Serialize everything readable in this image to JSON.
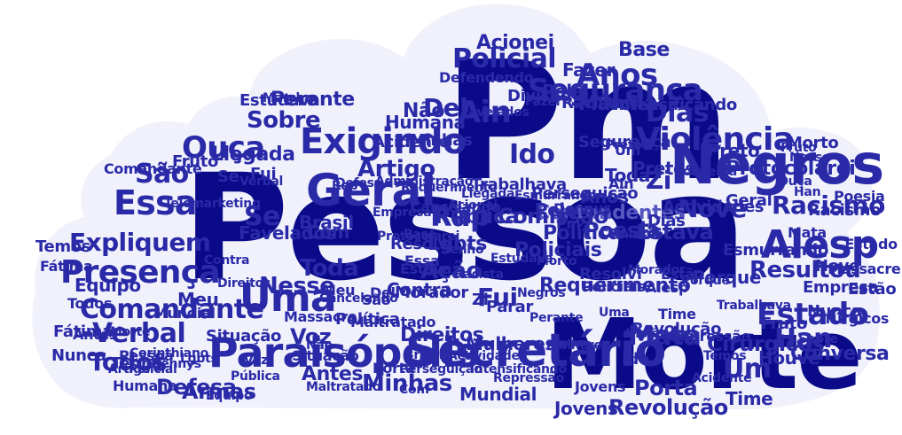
{
  "colors": {
    "background": "#ffffff",
    "cloud": "#f0f1fb",
    "dark": "#0b0b8a",
    "mid": "#2a2aa8",
    "light": "#5656c0"
  },
  "words": [
    {
      "t": "Pessoa"
    },
    {
      "t": "Pm"
    },
    {
      "t": "Morte"
    },
    {
      "t": "Negros"
    },
    {
      "t": "Alesp"
    },
    {
      "t": "Geral"
    },
    {
      "t": "Secretário"
    },
    {
      "t": "Paraisópolis"
    },
    {
      "t": "Exigindo"
    },
    {
      "t": "Presença"
    },
    {
      "t": "Essa"
    },
    {
      "t": "Uma"
    },
    {
      "t": "Violência"
    },
    {
      "t": "Segurança"
    },
    {
      "t": "Anos"
    },
    {
      "t": "Policial"
    },
    {
      "t": "Comandante"
    },
    {
      "t": "Expliquem"
    },
    {
      "t": "Estado"
    },
    {
      "t": "Resultou"
    },
    {
      "t": "Rap"
    },
    {
      "t": "Ouça"
    },
    {
      "t": "São"
    },
    {
      "t": "Verbal"
    },
    {
      "t": "Armas"
    },
    {
      "t": "Minhas"
    },
    {
      "t": "Todos"
    },
    {
      "t": "Mata"
    },
    {
      "t": "Han"
    },
    {
      "t": "Dias"
    },
    {
      "t": "Sobre"
    },
    {
      "t": "Del"
    },
    {
      "t": "Ain"
    },
    {
      "t": "Um"
    },
    {
      "t": "Racismo"
    },
    {
      "t": "Nove"
    },
    {
      "t": "Contundentes"
    },
    {
      "t": "Ido"
    },
    {
      "t": "Artigo"
    },
    {
      "t": "Se"
    },
    {
      "t": "Toda"
    },
    {
      "t": "Nesse"
    },
    {
      "t": "Fui"
    },
    {
      "t": "Ação"
    },
    {
      "t": "Direitos"
    },
    {
      "t": "Voz"
    },
    {
      "t": "Defesa"
    },
    {
      "t": "Revolução"
    },
    {
      "t": "Porta"
    },
    {
      "t": "Mundial"
    },
    {
      "t": "Antes"
    },
    {
      "t": "Cirúrgicos"
    },
    {
      "t": "Protocolarei"
    },
    {
      "t": "Preto"
    },
    {
      "t": "Pretos"
    },
    {
      "t": "Comissão"
    },
    {
      "t": "Pública"
    },
    {
      "t": "Política"
    },
    {
      "t": "Zi"
    },
    {
      "t": "Acionei"
    },
    {
      "t": "Base"
    },
    {
      "t": "Fazer"
    },
    {
      "t": "Marcha"
    },
    {
      "t": "Racista"
    },
    {
      "t": "Humana"
    },
    {
      "t": "Perante"
    },
    {
      "t": "Llegada"
    },
    {
      "t": "Brasil"
    },
    {
      "t": "Favelados"
    },
    {
      "t": "Equipo"
    },
    {
      "t": "Temos"
    },
    {
      "t": "Fátima"
    },
    {
      "t": "Nunca"
    },
    {
      "t": "Situação"
    },
    {
      "t": "Não"
    },
    {
      "t": "Frutó"
    },
    {
      "t": "Com"
    },
    {
      "t": "Resolvi"
    },
    {
      "t": "Contra"
    },
    {
      "t": "Estava"
    },
    {
      "t": "Lgbts"
    },
    {
      "t": "Poesia"
    },
    {
      "t": "Policiais"
    },
    {
      "t": "Conversa"
    },
    {
      "t": "Houve"
    },
    {
      "t": "Time"
    },
    {
      "t": "Jovens"
    },
    {
      "t": "Meu"
    },
    {
      "t": "Massacre"
    },
    {
      "t": "Maltratado"
    },
    {
      "t": "Tenho"
    },
    {
      "t": "Parar"
    },
    {
      "t": "Requerimento"
    },
    {
      "t": "Mulheres"
    },
    {
      "t": "Morador"
    },
    {
      "t": "Esmurrando"
    },
    {
      "t": "Porque"
    },
    {
      "t": "Empresa"
    },
    {
      "t": "Estão"
    },
    {
      "t": "Trabalhava"
    },
    {
      "t": "Perseguição"
    },
    {
      "t": "Repressão"
    },
    {
      "t": "Fruto"
    },
    {
      "t": "Cancelando"
    },
    {
      "t": "Acidente"
    },
    {
      "t": "Morto"
    },
    {
      "t": "Estudava"
    },
    {
      "t": "Intensificando"
    },
    {
      "t": "Telemarketing"
    },
    {
      "t": "Administração"
    },
    {
      "t": "Corinthiano"
    },
    {
      "t": "Actividades"
    },
    {
      "t": "Dennys"
    },
    {
      "t": "Pela"
    },
    {
      "t": "Defendendo"
    },
    {
      "t": "Divisão"
    },
    {
      "t": "Segurança"
    },
    {
      "t": "Minhas"
    },
    {
      "t": "Essa"
    },
    {
      "t": "Toda"
    },
    {
      "t": "Ain"
    },
    {
      "t": "Um"
    },
    {
      "t": "Dias"
    },
    {
      "t": "Anos"
    },
    {
      "t": "Pela"
    },
    {
      "t": "Zi"
    },
    {
      "t": "Del"
    },
    {
      "t": "Se"
    },
    {
      "t": "Ido"
    },
    {
      "t": "Rap"
    },
    {
      "t": "Fui"
    },
    {
      "t": "Nove"
    },
    {
      "t": "Geral"
    },
    {
      "t": "Mata"
    },
    {
      "t": "Ouça"
    },
    {
      "t": "Han"
    },
    {
      "t": "Estado"
    },
    {
      "t": "Racismo"
    },
    {
      "t": "Uma"
    },
    {
      "t": "Alesp"
    },
    {
      "t": "Pm"
    },
    {
      "t": "Estava"
    },
    {
      "t": "Verbal"
    },
    {
      "t": "Poesia"
    },
    {
      "t": "Base"
    },
    {
      "t": "Porta"
    },
    {
      "t": "Política"
    },
    {
      "t": "Contra"
    },
    {
      "t": "Pessoa"
    },
    {
      "t": "Time"
    },
    {
      "t": "Resolvi"
    },
    {
      "t": "Direitos"
    },
    {
      "t": "Todos"
    },
    {
      "t": "Situação"
    },
    {
      "t": "Mundial"
    },
    {
      "t": "Perante"
    },
    {
      "t": "Jovens"
    },
    {
      "t": "Revolução"
    },
    {
      "t": "Meu"
    },
    {
      "t": "Estão"
    },
    {
      "t": "Voz"
    },
    {
      "t": "Cirúrgicos"
    },
    {
      "t": "Comandante"
    },
    {
      "t": "Antes"
    },
    {
      "t": "Fátima"
    },
    {
      "t": "Morte"
    },
    {
      "t": "Humana"
    },
    {
      "t": "São"
    },
    {
      "t": "Nunca"
    },
    {
      "t": "Temos"
    },
    {
      "t": "Massacre"
    },
    {
      "t": "Tenho"
    },
    {
      "t": "Policiais"
    },
    {
      "t": "Negros"
    },
    {
      "t": "Pretos"
    },
    {
      "t": "Houve"
    },
    {
      "t": "Parar"
    },
    {
      "t": "Não"
    },
    {
      "t": "Fazer"
    },
    {
      "t": "Conversa"
    },
    {
      "t": "Brasil"
    },
    {
      "t": "Acionei"
    },
    {
      "t": "Equipo"
    },
    {
      "t": "Com"
    },
    {
      "t": "Marcha"
    },
    {
      "t": "Nesse"
    },
    {
      "t": "Artigo"
    },
    {
      "t": "Lgbts"
    },
    {
      "t": "Sobre"
    },
    {
      "t": "Policial"
    },
    {
      "t": "Requerimento"
    },
    {
      "t": "Violência"
    },
    {
      "t": "Morto"
    },
    {
      "t": "Pública"
    },
    {
      "t": "Porque"
    },
    {
      "t": "Empresa"
    },
    {
      "t": "Mulheres"
    },
    {
      "t": "Estudava"
    },
    {
      "t": "Racista"
    },
    {
      "t": "Defesa"
    },
    {
      "t": "Llegada"
    },
    {
      "t": "Fruto"
    },
    {
      "t": "Cancelando"
    },
    {
      "t": "Repressão"
    },
    {
      "t": "Trabalhava"
    },
    {
      "t": "Favelados"
    },
    {
      "t": "Esmurrando"
    },
    {
      "t": "Morador"
    },
    {
      "t": "Maltratado"
    },
    {
      "t": "Dennys"
    },
    {
      "t": "Comissão"
    },
    {
      "t": "Protocolarei"
    },
    {
      "t": "Acidente"
    },
    {
      "t": "Intensificando"
    },
    {
      "t": "Perseguição"
    },
    {
      "t": "Actividades"
    }
  ]
}
